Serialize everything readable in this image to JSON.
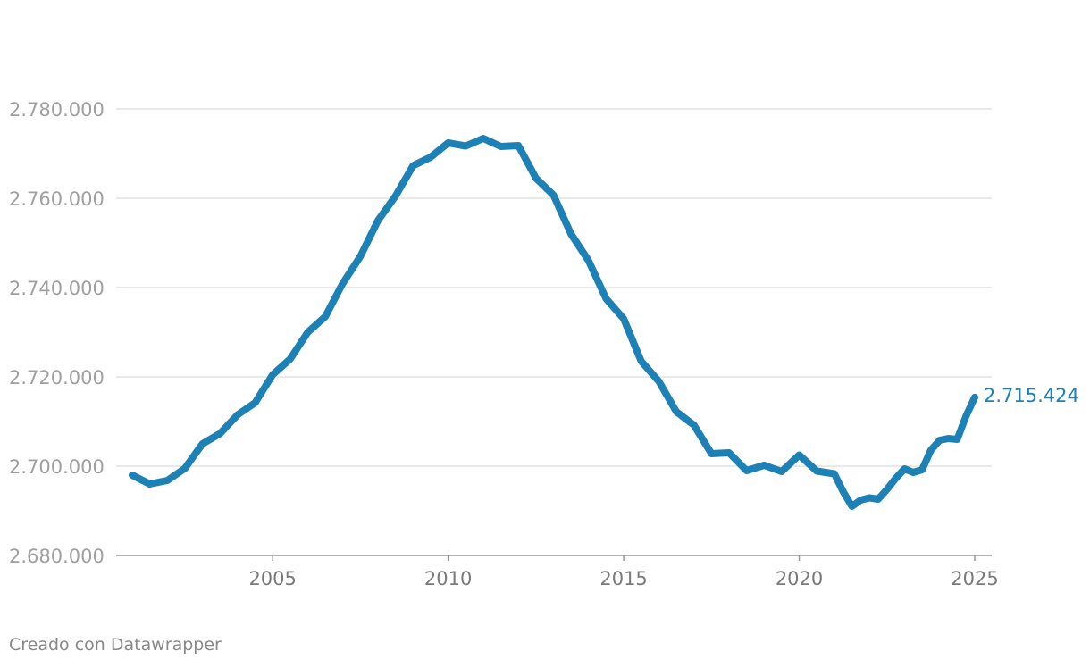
{
  "footer": {
    "credit": "Creado con Datawrapper"
  },
  "colors": {
    "line": "#1d81b5",
    "grid": "#e2e2e2",
    "axis": "#999999",
    "end_label": "#1d81b5"
  },
  "chart_data": {
    "type": "line",
    "title": "",
    "xlabel": "",
    "ylabel": "",
    "grid": true,
    "xlim": [
      2001,
      2025
    ],
    "ylim": [
      2680000,
      2780000
    ],
    "x_ticks": [
      2005,
      2010,
      2015,
      2020,
      2025
    ],
    "x_tick_labels": [
      "2005",
      "2010",
      "2015",
      "2020",
      "2025"
    ],
    "y_ticks": [
      2680000,
      2700000,
      2720000,
      2740000,
      2760000,
      2780000
    ],
    "y_tick_labels": [
      "2.680.000",
      "2.700.000",
      "2.720.000",
      "2.740.000",
      "2.760.000",
      "2.780.000"
    ],
    "end_label": "2.715.424",
    "series": [
      {
        "x": [
          2001,
          2001.5,
          2002,
          2002.5,
          2003,
          2003.5,
          2004,
          2004.5,
          2005,
          2005.5,
          2006,
          2006.5,
          2007,
          2007.5,
          2008,
          2008.5,
          2009,
          2009.5,
          2010,
          2010.5,
          2011,
          2011.5,
          2012,
          2012.5,
          2013,
          2013.5,
          2014,
          2014.5,
          2015,
          2015.5,
          2016,
          2016.5,
          2017,
          2017.5,
          2018,
          2018.5,
          2019,
          2019.5,
          2020,
          2020.5,
          2021,
          2021.25,
          2021.5,
          2021.75,
          2022,
          2022.25,
          2022.5,
          2022.75,
          2023,
          2023.25,
          2023.5,
          2023.75,
          2024,
          2024.25,
          2024.5,
          2024.75,
          2025
        ],
        "y": [
          2698000,
          2696000,
          2696800,
          2699500,
          2705000,
          2707300,
          2711500,
          2714200,
          2720500,
          2724000,
          2730000,
          2733500,
          2741000,
          2747000,
          2755000,
          2760500,
          2767300,
          2769200,
          2772400,
          2771700,
          2773400,
          2771600,
          2771800,
          2764500,
          2760700,
          2752000,
          2746000,
          2737500,
          2733000,
          2723500,
          2719000,
          2712200,
          2709200,
          2702800,
          2703000,
          2699000,
          2700200,
          2698800,
          2702500,
          2698900,
          2698300,
          2694300,
          2691000,
          2692400,
          2692900,
          2692600,
          2694800,
          2697300,
          2699400,
          2698600,
          2699200,
          2703600,
          2705800,
          2706200,
          2706000,
          2711200,
          2715424
        ]
      }
    ]
  }
}
